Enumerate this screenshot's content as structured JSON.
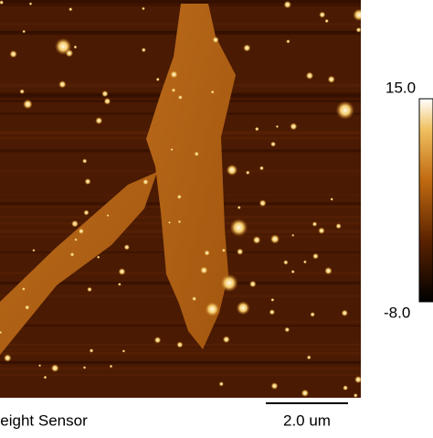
{
  "image": {
    "channel_label": "Height Sensor",
    "scale_bar_label": "2.0 um"
  },
  "colorbar": {
    "max_label": "15.0",
    "min_label": "-8.0"
  }
}
